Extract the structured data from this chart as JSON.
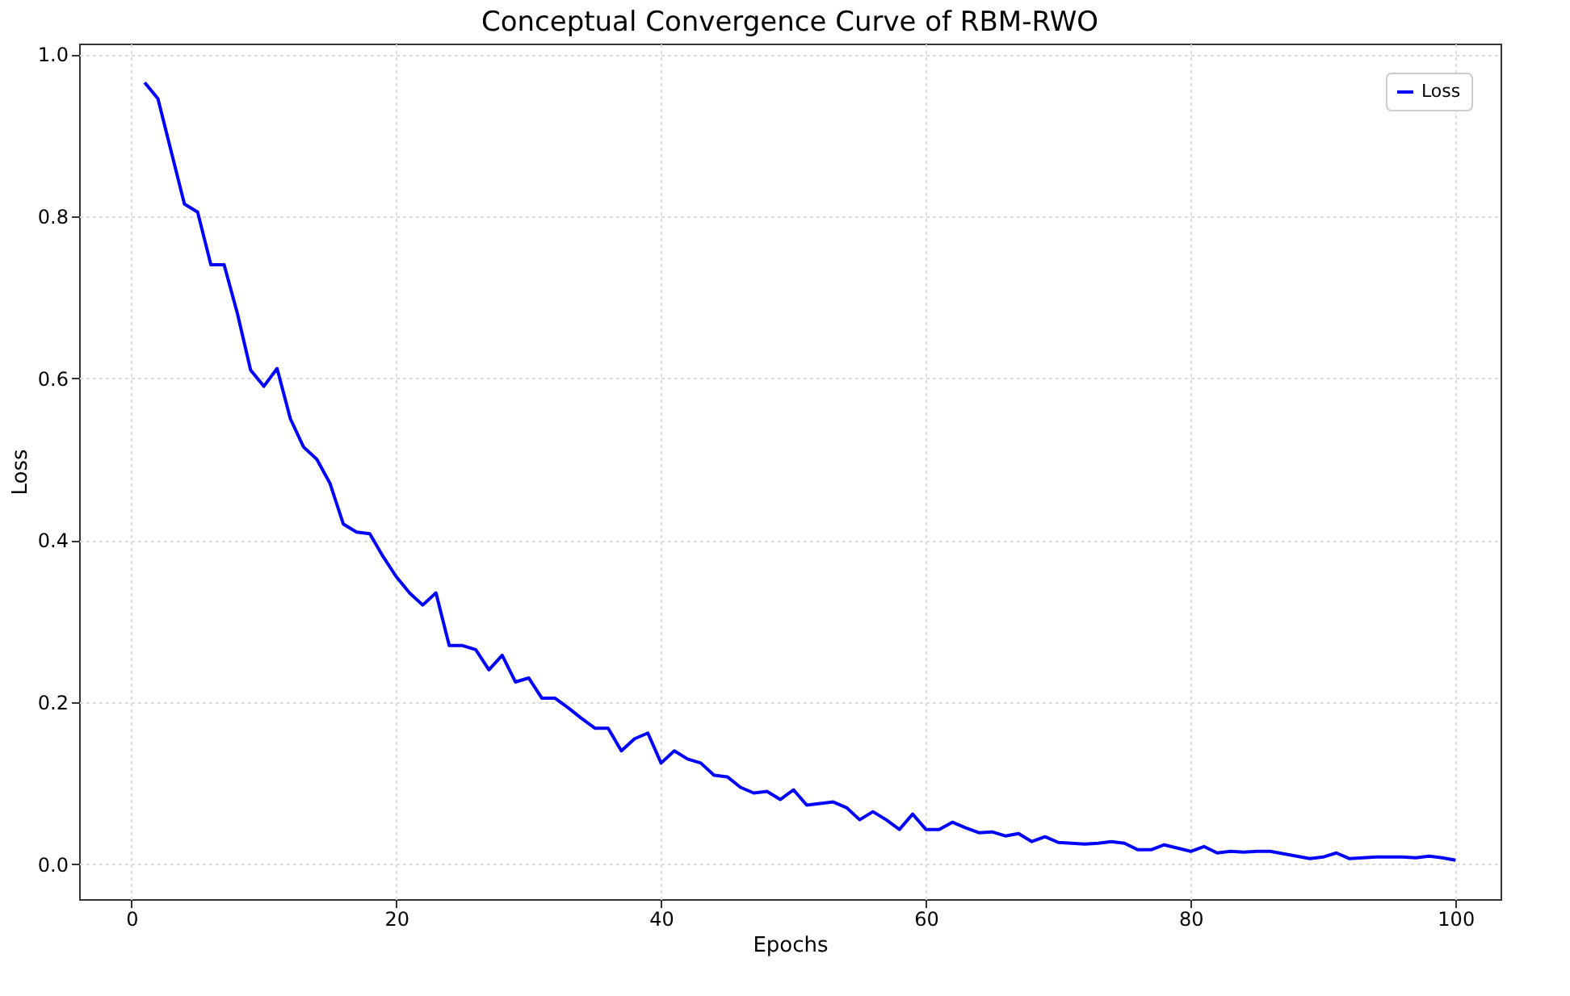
{
  "chart_data": {
    "type": "line",
    "title": "Conceptual Convergence Curve of RBM-RWO",
    "xlabel": "Epochs",
    "ylabel": "Loss",
    "x": [
      1,
      2,
      3,
      4,
      5,
      6,
      7,
      8,
      9,
      10,
      11,
      12,
      13,
      14,
      15,
      16,
      17,
      18,
      19,
      20,
      21,
      22,
      23,
      24,
      25,
      26,
      27,
      28,
      29,
      30,
      31,
      32,
      33,
      34,
      35,
      36,
      37,
      38,
      39,
      40,
      41,
      42,
      43,
      44,
      45,
      46,
      47,
      48,
      49,
      50,
      51,
      52,
      53,
      54,
      55,
      56,
      57,
      58,
      59,
      60,
      61,
      62,
      63,
      64,
      65,
      66,
      67,
      68,
      69,
      70,
      71,
      72,
      73,
      74,
      75,
      76,
      77,
      78,
      79,
      80,
      81,
      82,
      83,
      84,
      85,
      86,
      87,
      88,
      89,
      90,
      91,
      92,
      93,
      94,
      95,
      96,
      97,
      98,
      99,
      100
    ],
    "series": [
      {
        "name": "Loss",
        "color": "#0000ff",
        "values": [
          0.965,
          0.945,
          0.88,
          0.815,
          0.805,
          0.74,
          0.74,
          0.68,
          0.61,
          0.59,
          0.612,
          0.55,
          0.515,
          0.5,
          0.47,
          0.42,
          0.41,
          0.408,
          0.38,
          0.355,
          0.335,
          0.32,
          0.335,
          0.27,
          0.27,
          0.265,
          0.24,
          0.258,
          0.225,
          0.23,
          0.205,
          0.205,
          0.193,
          0.18,
          0.168,
          0.168,
          0.14,
          0.155,
          0.162,
          0.125,
          0.14,
          0.13,
          0.125,
          0.11,
          0.108,
          0.095,
          0.088,
          0.09,
          0.08,
          0.092,
          0.073,
          0.075,
          0.077,
          0.07,
          0.055,
          0.065,
          0.055,
          0.043,
          0.062,
          0.043,
          0.043,
          0.052,
          0.045,
          0.039,
          0.04,
          0.035,
          0.038,
          0.028,
          0.034,
          0.027,
          0.026,
          0.025,
          0.026,
          0.028,
          0.026,
          0.018,
          0.018,
          0.024,
          0.02,
          0.016,
          0.022,
          0.014,
          0.016,
          0.015,
          0.016,
          0.016,
          0.013,
          0.01,
          0.007,
          0.009,
          0.014,
          0.007,
          0.008,
          0.009,
          0.009,
          0.009,
          0.008,
          0.01,
          0.008,
          0.005
        ]
      }
    ],
    "xlim": [
      -3.95,
      103.4
    ],
    "ylim": [
      -0.043,
      1.013
    ],
    "xticks": [
      0,
      20,
      40,
      60,
      80,
      100
    ],
    "yticks": [
      {
        "value": 0,
        "label": "0.0"
      },
      0.2,
      0.4,
      0.6,
      0.8,
      {
        "value": 1,
        "label": "1.0"
      }
    ],
    "grid": true,
    "legend": "top right",
    "line_style": "solid",
    "marker": "none"
  }
}
